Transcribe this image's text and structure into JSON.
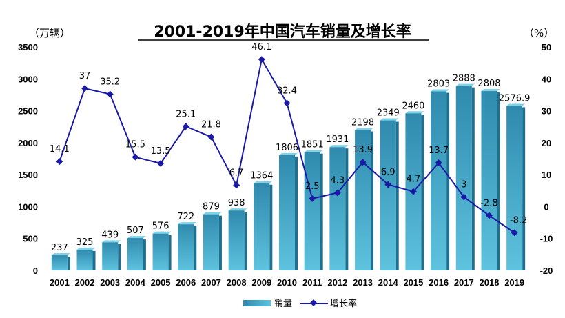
{
  "chart_data": {
    "type": "bar+line",
    "title": "2001-2019年中国汽车销量及增长率",
    "left_unit": "（万辆）",
    "right_unit": "（%）",
    "categories": [
      "2001",
      "2002",
      "2003",
      "2004",
      "2005",
      "2006",
      "2007",
      "2008",
      "2009",
      "2010",
      "2011",
      "2012",
      "2013",
      "2014",
      "2015",
      "2016",
      "2017",
      "2018",
      "2019"
    ],
    "series": [
      {
        "name": "销量",
        "type": "bar",
        "axis": "left",
        "values": [
          237,
          325,
          439,
          507,
          576,
          722,
          879,
          938,
          1364,
          1806,
          1851,
          1931,
          2198,
          2349,
          2460,
          2803,
          2888,
          2808,
          2576.9
        ],
        "labels": [
          "237",
          "325",
          "439",
          "507",
          "576",
          "722",
          "879",
          "938",
          "1364",
          "1806",
          "1851",
          "1931",
          "2198",
          "2349",
          "2460",
          "2803",
          "2888",
          "2808",
          "2576.9"
        ]
      },
      {
        "name": "增长率",
        "type": "line",
        "axis": "right",
        "values": [
          14.1,
          37,
          35.2,
          15.5,
          13.5,
          25.1,
          21.8,
          6.7,
          46.1,
          32.4,
          2.5,
          4.3,
          13.9,
          6.9,
          4.7,
          13.7,
          3,
          -2.8,
          -8.2
        ],
        "labels": [
          "14.1",
          "37",
          "35.2",
          "15.5",
          "13.5",
          "25.1",
          "21.8",
          "6.7",
          "46.1",
          "32.4",
          "2.5",
          "4.3",
          "13.9",
          "6.9",
          "4.7",
          "13.7",
          "3",
          "-2.8",
          "-8.2"
        ]
      }
    ],
    "left_axis": {
      "min": 0,
      "max": 3500,
      "ticks": [
        "0",
        "500",
        "1000",
        "1500",
        "2000",
        "2500",
        "3000",
        "3500"
      ]
    },
    "right_axis": {
      "min": -20,
      "max": 50,
      "ticks": [
        "-20",
        "-10",
        "0",
        "10",
        "20",
        "30",
        "40",
        "50"
      ]
    },
    "legend_position": "bottom",
    "colors": {
      "bar_top": "#2e8bb0",
      "bar_bottom": "#5cc0dc",
      "bar_side": "#1f6f8e",
      "line": "#1a1aa6"
    }
  }
}
